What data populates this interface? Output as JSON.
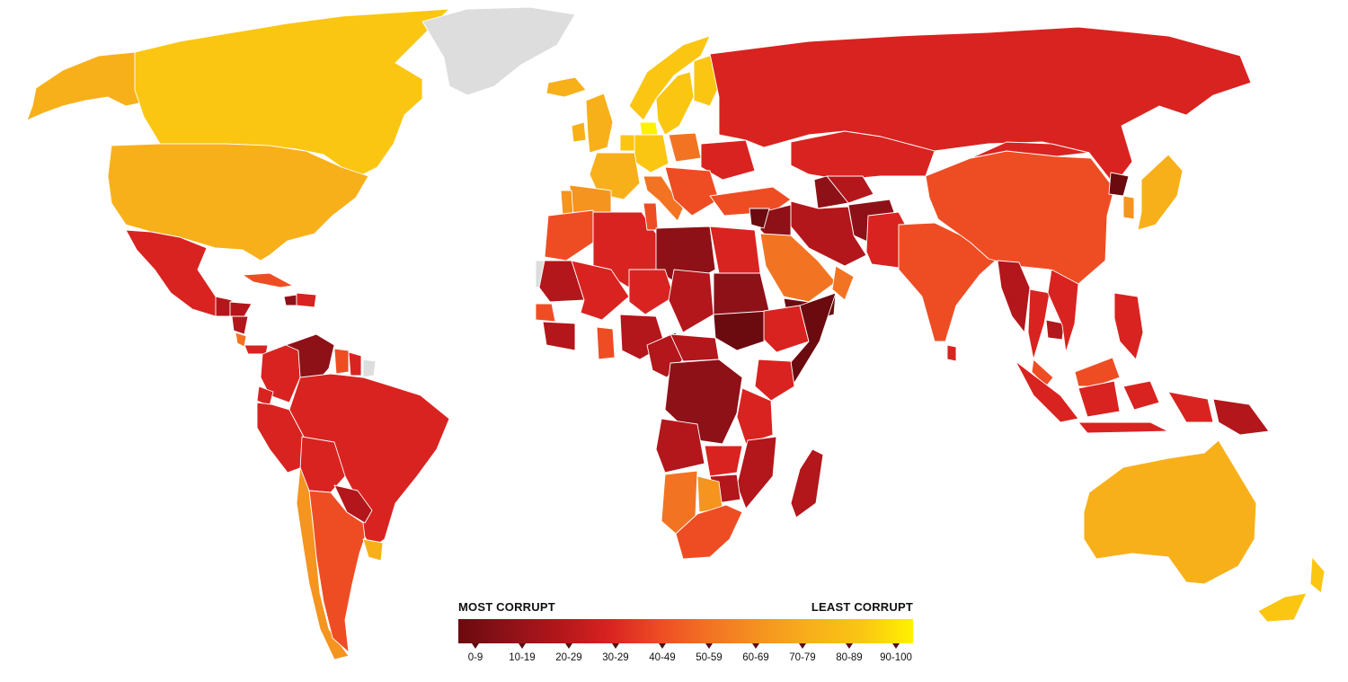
{
  "legend": {
    "left_label": "MOST CORRUPT",
    "right_label": "LEAST CORRUPT",
    "ranges": [
      "0-9",
      "10-19",
      "20-29",
      "30-29",
      "40-49",
      "50-59",
      "60-69",
      "70-79",
      "80-89",
      "90-100"
    ],
    "colors": [
      "#6b0a0f",
      "#8e1118",
      "#b3161b",
      "#d92320",
      "#ee4d24",
      "#f27423",
      "#f5941f",
      "#f8b01a",
      "#fac612",
      "#fff200"
    ]
  },
  "colors": {
    "no_data": "#dddddd",
    "water": "#ffffff"
  },
  "countries": [
    {
      "name": "Alaska (USA)",
      "band": "70-79"
    },
    {
      "name": "Canada",
      "band": "80-89"
    },
    {
      "name": "Greenland",
      "band": "no data"
    },
    {
      "name": "United States",
      "band": "70-79"
    },
    {
      "name": "Mexico",
      "band": "30-29"
    },
    {
      "name": "Guatemala",
      "band": "20-29"
    },
    {
      "name": "Honduras",
      "band": "20-29"
    },
    {
      "name": "Nicaragua",
      "band": "20-29"
    },
    {
      "name": "Costa Rica",
      "band": "50-59"
    },
    {
      "name": "Panama",
      "band": "30-29"
    },
    {
      "name": "Cuba",
      "band": "40-49"
    },
    {
      "name": "Haiti",
      "band": "10-19"
    },
    {
      "name": "Dominican Republic",
      "band": "30-29"
    },
    {
      "name": "Colombia",
      "band": "30-29"
    },
    {
      "name": "Venezuela",
      "band": "10-19"
    },
    {
      "name": "Guyana",
      "band": "40-49"
    },
    {
      "name": "Suriname",
      "band": "30-29"
    },
    {
      "name": "French Guiana",
      "band": "no data"
    },
    {
      "name": "Ecuador",
      "band": "30-29"
    },
    {
      "name": "Peru",
      "band": "30-29"
    },
    {
      "name": "Brazil",
      "band": "30-29"
    },
    {
      "name": "Bolivia",
      "band": "30-29"
    },
    {
      "name": "Paraguay",
      "band": "20-29"
    },
    {
      "name": "Chile",
      "band": "60-69"
    },
    {
      "name": "Argentina",
      "band": "40-49"
    },
    {
      "name": "Uruguay",
      "band": "70-79"
    },
    {
      "name": "Iceland",
      "band": "70-79"
    },
    {
      "name": "Ireland",
      "band": "70-79"
    },
    {
      "name": "United Kingdom",
      "band": "70-79"
    },
    {
      "name": "Norway",
      "band": "80-89"
    },
    {
      "name": "Sweden",
      "band": "80-89"
    },
    {
      "name": "Finland",
      "band": "80-89"
    },
    {
      "name": "Denmark",
      "band": "90-100"
    },
    {
      "name": "Germany",
      "band": "80-89"
    },
    {
      "name": "Netherlands",
      "band": "80-89"
    },
    {
      "name": "France",
      "band": "70-79"
    },
    {
      "name": "Spain",
      "band": "60-69"
    },
    {
      "name": "Portugal",
      "band": "60-69"
    },
    {
      "name": "Italy",
      "band": "50-59"
    },
    {
      "name": "Poland",
      "band": "50-59"
    },
    {
      "name": "Ukraine",
      "band": "30-29"
    },
    {
      "name": "Balkans",
      "band": "40-49"
    },
    {
      "name": "Turkey",
      "band": "40-49"
    },
    {
      "name": "Russia",
      "band": "30-29"
    },
    {
      "name": "Kazakhstan",
      "band": "30-29"
    },
    {
      "name": "Uzbekistan",
      "band": "20-29"
    },
    {
      "name": "Turkmenistan",
      "band": "10-19"
    },
    {
      "name": "Afghanistan",
      "band": "10-19"
    },
    {
      "name": "Iran",
      "band": "20-29"
    },
    {
      "name": "Iraq",
      "band": "10-19"
    },
    {
      "name": "Syria",
      "band": "0-9"
    },
    {
      "name": "Saudi Arabia",
      "band": "50-59"
    },
    {
      "name": "Yemen",
      "band": "0-9"
    },
    {
      "name": "Oman",
      "band": "50-59"
    },
    {
      "name": "Pakistan",
      "band": "30-29"
    },
    {
      "name": "India",
      "band": "40-49"
    },
    {
      "name": "Sri Lanka",
      "band": "30-29"
    },
    {
      "name": "China",
      "band": "40-49"
    },
    {
      "name": "Mongolia",
      "band": "30-29"
    },
    {
      "name": "North Korea",
      "band": "0-9"
    },
    {
      "name": "South Korea",
      "band": "60-69"
    },
    {
      "name": "Japan",
      "band": "70-79"
    },
    {
      "name": "Myanmar",
      "band": "20-29"
    },
    {
      "name": "Thailand",
      "band": "30-29"
    },
    {
      "name": "Cambodia",
      "band": "20-29"
    },
    {
      "name": "Vietnam",
      "band": "30-29"
    },
    {
      "name": "Malaysia",
      "band": "40-49"
    },
    {
      "name": "Philippines",
      "band": "30-29"
    },
    {
      "name": "Indonesia",
      "band": "30-29"
    },
    {
      "name": "Papua New Guinea",
      "band": "20-29"
    },
    {
      "name": "Australia",
      "band": "70-79"
    },
    {
      "name": "New Zealand",
      "band": "80-89"
    },
    {
      "name": "Morocco",
      "band": "40-49"
    },
    {
      "name": "Western Sahara",
      "band": "no data"
    },
    {
      "name": "Algeria",
      "band": "30-29"
    },
    {
      "name": "Tunisia",
      "band": "40-49"
    },
    {
      "name": "Libya",
      "band": "10-19"
    },
    {
      "name": "Egypt",
      "band": "30-29"
    },
    {
      "name": "Mauritania",
      "band": "20-29"
    },
    {
      "name": "Mali",
      "band": "30-29"
    },
    {
      "name": "Niger",
      "band": "30-29"
    },
    {
      "name": "Chad",
      "band": "20-29"
    },
    {
      "name": "Sudan",
      "band": "10-19"
    },
    {
      "name": "South Sudan",
      "band": "0-9"
    },
    {
      "name": "Ethiopia",
      "band": "30-29"
    },
    {
      "name": "Somalia",
      "band": "0-9"
    },
    {
      "name": "Senegal",
      "band": "40-49"
    },
    {
      "name": "Guinea",
      "band": "20-29"
    },
    {
      "name": "Ghana",
      "band": "40-49"
    },
    {
      "name": "Nigeria",
      "band": "20-29"
    },
    {
      "name": "Cameroon",
      "band": "20-29"
    },
    {
      "name": "Central African Republic",
      "band": "20-29"
    },
    {
      "name": "DR Congo",
      "band": "10-19"
    },
    {
      "name": "Kenya",
      "band": "30-29"
    },
    {
      "name": "Tanzania",
      "band": "30-29"
    },
    {
      "name": "Angola",
      "band": "20-29"
    },
    {
      "name": "Zambia",
      "band": "30-29"
    },
    {
      "name": "Mozambique",
      "band": "20-29"
    },
    {
      "name": "Zimbabwe",
      "band": "20-29"
    },
    {
      "name": "Namibia",
      "band": "50-59"
    },
    {
      "name": "Botswana",
      "band": "60-69"
    },
    {
      "name": "South Africa",
      "band": "40-49"
    },
    {
      "name": "Madagascar",
      "band": "20-29"
    }
  ]
}
